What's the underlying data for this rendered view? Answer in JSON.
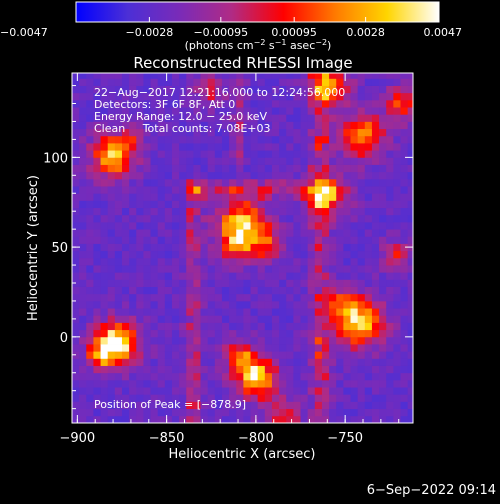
{
  "chart_data": {
    "type": "heatmap",
    "title": "Reconstructed RHESSI Image",
    "xlabel": "Heliocentric X (arcsec)",
    "ylabel": "Heliocentric Y (arcsec)",
    "xlim": [
      -903,
      -712
    ],
    "ylim": [
      -48,
      147
    ],
    "x_ticks": [
      {
        "value": -900,
        "label": "−900"
      },
      {
        "value": -850,
        "label": "−850"
      },
      {
        "value": -800,
        "label": "−800"
      },
      {
        "value": -750,
        "label": "−750"
      }
    ],
    "y_ticks": [
      {
        "value": 0,
        "label": "0"
      },
      {
        "value": 50,
        "label": "50"
      },
      {
        "value": 100,
        "label": "100"
      }
    ],
    "colorbar": {
      "range": [
        -0.0047,
        0.0047
      ],
      "ticks": [
        {
          "value": -0.0047,
          "label": "−0.0047"
        },
        {
          "value": -0.0028,
          "label": "−0.0028"
        },
        {
          "value": -0.00095,
          "label": "−0.00095"
        },
        {
          "value": 0.00095,
          "label": "0.00095"
        },
        {
          "value": 0.0028,
          "label": "0.0028"
        },
        {
          "value": 0.0047,
          "label": "0.0047"
        }
      ],
      "units_parts": [
        "(photons cm",
        "−2",
        " s",
        "−1",
        " asec",
        "−2",
        ")"
      ],
      "stops": [
        "#0000ff",
        "#4c2fd6",
        "#7a2bb8",
        "#b02b85",
        "#ff0000",
        "#ff7a00",
        "#ffd500",
        "#ffffff"
      ]
    },
    "info_lines": [
      "22−Aug−2017 12:21:16.000 to 12:24:56.000",
      "Detectors: 3F 6F 8F, Att 0",
      "Energy Range: 12.0 − 25.0 keV",
      "Clean     Total counts: 7.08E+03"
    ],
    "peak_label": "Position of Peak = [−878.9]",
    "sources": [
      {
        "x": -878,
        "y": -4,
        "sigma": 9,
        "amp": 1.0
      },
      {
        "x": -889,
        "y": -11,
        "sigma": 5,
        "amp": 0.4
      },
      {
        "x": -880,
        "y": 101,
        "sigma": 9,
        "amp": 0.75
      },
      {
        "x": -870,
        "y": 112,
        "sigma": 4,
        "amp": 0.25
      },
      {
        "x": -808,
        "y": 63,
        "sigma": 10,
        "amp": 0.82
      },
      {
        "x": -812,
        "y": 50,
        "sigma": 6,
        "amp": 0.4
      },
      {
        "x": -794,
        "y": 52,
        "sigma": 7,
        "amp": 0.45
      },
      {
        "x": -742,
        "y": 8,
        "sigma": 10,
        "amp": 0.88
      },
      {
        "x": -752,
        "y": 20,
        "sigma": 5,
        "amp": 0.45
      },
      {
        "x": -800,
        "y": -22,
        "sigma": 9,
        "amp": 0.82
      },
      {
        "x": -810,
        "y": -10,
        "sigma": 6,
        "amp": 0.5
      },
      {
        "x": -785,
        "y": -45,
        "sigma": 7,
        "amp": 0.5
      },
      {
        "x": -758,
        "y": 78,
        "sigma": 8,
        "amp": 0.55
      },
      {
        "x": -740,
        "y": 112,
        "sigma": 9,
        "amp": 0.7
      },
      {
        "x": -758,
        "y": 140,
        "sigma": 8,
        "amp": 0.6
      },
      {
        "x": -718,
        "y": 130,
        "sigma": 7,
        "amp": 0.55
      },
      {
        "x": -826,
        "y": 137,
        "sigma": 6,
        "amp": 0.4
      },
      {
        "x": -722,
        "y": 45,
        "sigma": 6,
        "amp": 0.45
      }
    ],
    "ridges": [
      {
        "from": [
          -764,
          147
        ],
        "to": [
          -764,
          -48
        ],
        "width": 4,
        "amp": 0.35
      },
      {
        "from": [
          -835,
          82
        ],
        "to": [
          -760,
          82
        ],
        "width": 3.5,
        "amp": 0.3
      },
      {
        "from": [
          -835,
          82
        ],
        "to": [
          -835,
          -48
        ],
        "width": 3.5,
        "amp": 0.3
      },
      {
        "from": [
          -810,
          100
        ],
        "to": [
          -810,
          147
        ],
        "width": 3,
        "amp": 0.22
      }
    ],
    "background": {
      "level": -0.38,
      "noise": 0.18
    }
  },
  "footer": {
    "timestamp": "6−Sep−2022 09:14"
  }
}
